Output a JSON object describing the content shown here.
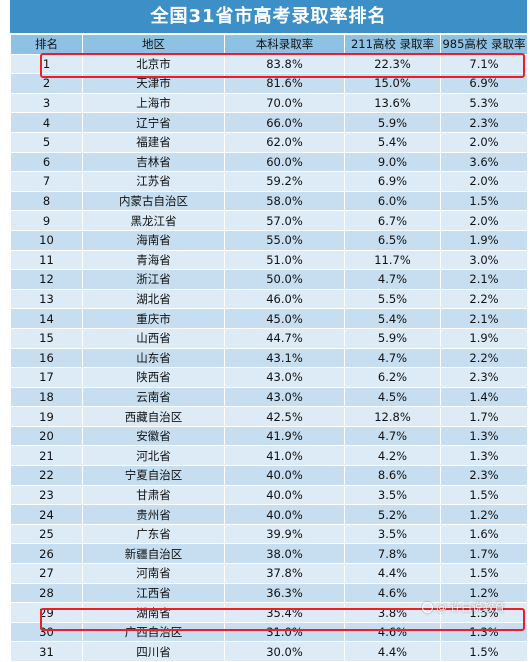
{
  "title": "全国31省市高考录取率排名",
  "headers": [
    "排名",
    "地区",
    "本科录取率",
    "211高校 录取率",
    "985高校 录取率"
  ],
  "rows": [
    [
      "1",
      "北京市",
      "83.8%",
      "22.3%",
      "7.1%"
    ],
    [
      "2",
      "天津市",
      "81.6%",
      "15.0%",
      "6.9%"
    ],
    [
      "3",
      "上海市",
      "70.0%",
      "13.6%",
      "5.3%"
    ],
    [
      "4",
      "辽宁省",
      "66.0%",
      "5.9%",
      "2.3%"
    ],
    [
      "5",
      "福建省",
      "62.0%",
      "5.4%",
      "2.0%"
    ],
    [
      "6",
      "吉林省",
      "60.0%",
      "9.0%",
      "3.6%"
    ],
    [
      "7",
      "江苏省",
      "59.2%",
      "6.9%",
      "2.0%"
    ],
    [
      "8",
      "内蒙古自治区",
      "58.0%",
      "6.0%",
      "1.5%"
    ],
    [
      "9",
      "黑龙江省",
      "57.0%",
      "6.7%",
      "2.0%"
    ],
    [
      "10",
      "海南省",
      "55.0%",
      "6.5%",
      "1.9%"
    ],
    [
      "11",
      "青海省",
      "51.0%",
      "11.7%",
      "3.0%"
    ],
    [
      "12",
      "浙江省",
      "50.0%",
      "4.7%",
      "2.1%"
    ],
    [
      "13",
      "湖北省",
      "46.0%",
      "5.5%",
      "2.2%"
    ],
    [
      "14",
      "重庆市",
      "45.0%",
      "5.4%",
      "2.1%"
    ],
    [
      "15",
      "山西省",
      "44.7%",
      "5.9%",
      "1.9%"
    ],
    [
      "16",
      "山东省",
      "43.1%",
      "4.7%",
      "2.2%"
    ],
    [
      "17",
      "陕西省",
      "43.0%",
      "6.2%",
      "2.3%"
    ],
    [
      "18",
      "云南省",
      "43.0%",
      "4.5%",
      "1.4%"
    ],
    [
      "19",
      "西藏自治区",
      "42.5%",
      "12.8%",
      "1.7%"
    ],
    [
      "20",
      "安徽省",
      "41.9%",
      "4.7%",
      "1.3%"
    ],
    [
      "21",
      "河北省",
      "41.0%",
      "4.2%",
      "1.3%"
    ],
    [
      "22",
      "宁夏自治区",
      "40.0%",
      "8.6%",
      "2.3%"
    ],
    [
      "23",
      "甘肃省",
      "40.0%",
      "3.5%",
      "1.5%"
    ],
    [
      "24",
      "贵州省",
      "40.0%",
      "5.2%",
      "1.2%"
    ],
    [
      "25",
      "广东省",
      "39.9%",
      "3.5%",
      "1.6%"
    ],
    [
      "26",
      "新疆自治区",
      "38.0%",
      "7.8%",
      "1.7%"
    ],
    [
      "27",
      "河南省",
      "37.8%",
      "4.4%",
      "1.5%"
    ],
    [
      "28",
      "江西省",
      "36.3%",
      "4.6%",
      "1.2%"
    ],
    [
      "29",
      "湖南省",
      "35.4%",
      "3.8%",
      "1.5%"
    ],
    [
      "30",
      "广西自治区",
      "31.0%",
      "4.6%",
      "1.3%"
    ],
    [
      "31",
      "四川省",
      "30.0%",
      "4.4%",
      "1.5%"
    ]
  ],
  "watermark": "许白说教育",
  "colors": {
    "title_bg": "#3d8fc8",
    "header_bg": "#8ec2e4",
    "row_light": "#dcebf6",
    "row_dark": "#c6def0",
    "highlight": "#e8202a"
  }
}
